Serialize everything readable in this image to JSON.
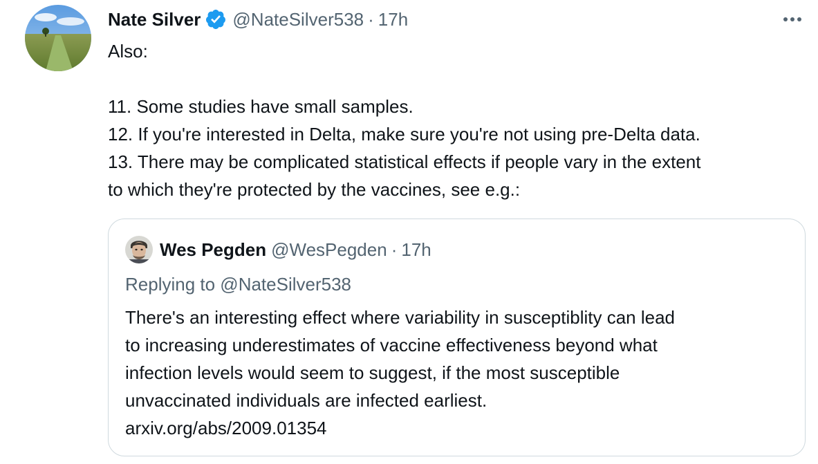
{
  "tweet": {
    "author_name": "Nate Silver",
    "verified_icon": "verified-badge-icon",
    "handle": "@NateSilver538",
    "separator": "·",
    "time": "17h",
    "more_icon": "more-horizontal-icon",
    "text_lines": [
      "Also:",
      "",
      "11. Some studies have small samples.",
      "12. If you're interested in Delta, make sure you're not using pre-Delta data.",
      "13. There may be complicated statistical effects if people vary in the extent",
      "to which they're protected by the vaccines, see e.g.:"
    ]
  },
  "quote": {
    "author_name": "Wes Pegden",
    "handle": "@WesPegden",
    "separator": "·",
    "time": "17h",
    "replying_to": "Replying to @NateSilver538",
    "text_lines": [
      "There's an interesting effect where variability in susceptiblity can lead",
      "to increasing underestimates of vaccine effectiveness beyond what",
      "infection levels would seem to suggest, if the most susceptible",
      "unvaccinated individuals are infected earliest.",
      "arxiv.org/abs/2009.01354"
    ]
  },
  "colors": {
    "text_primary": "#0f1419",
    "text_secondary": "#536471",
    "verified_blue": "#1d9bf0",
    "border": "#cfd9de"
  }
}
